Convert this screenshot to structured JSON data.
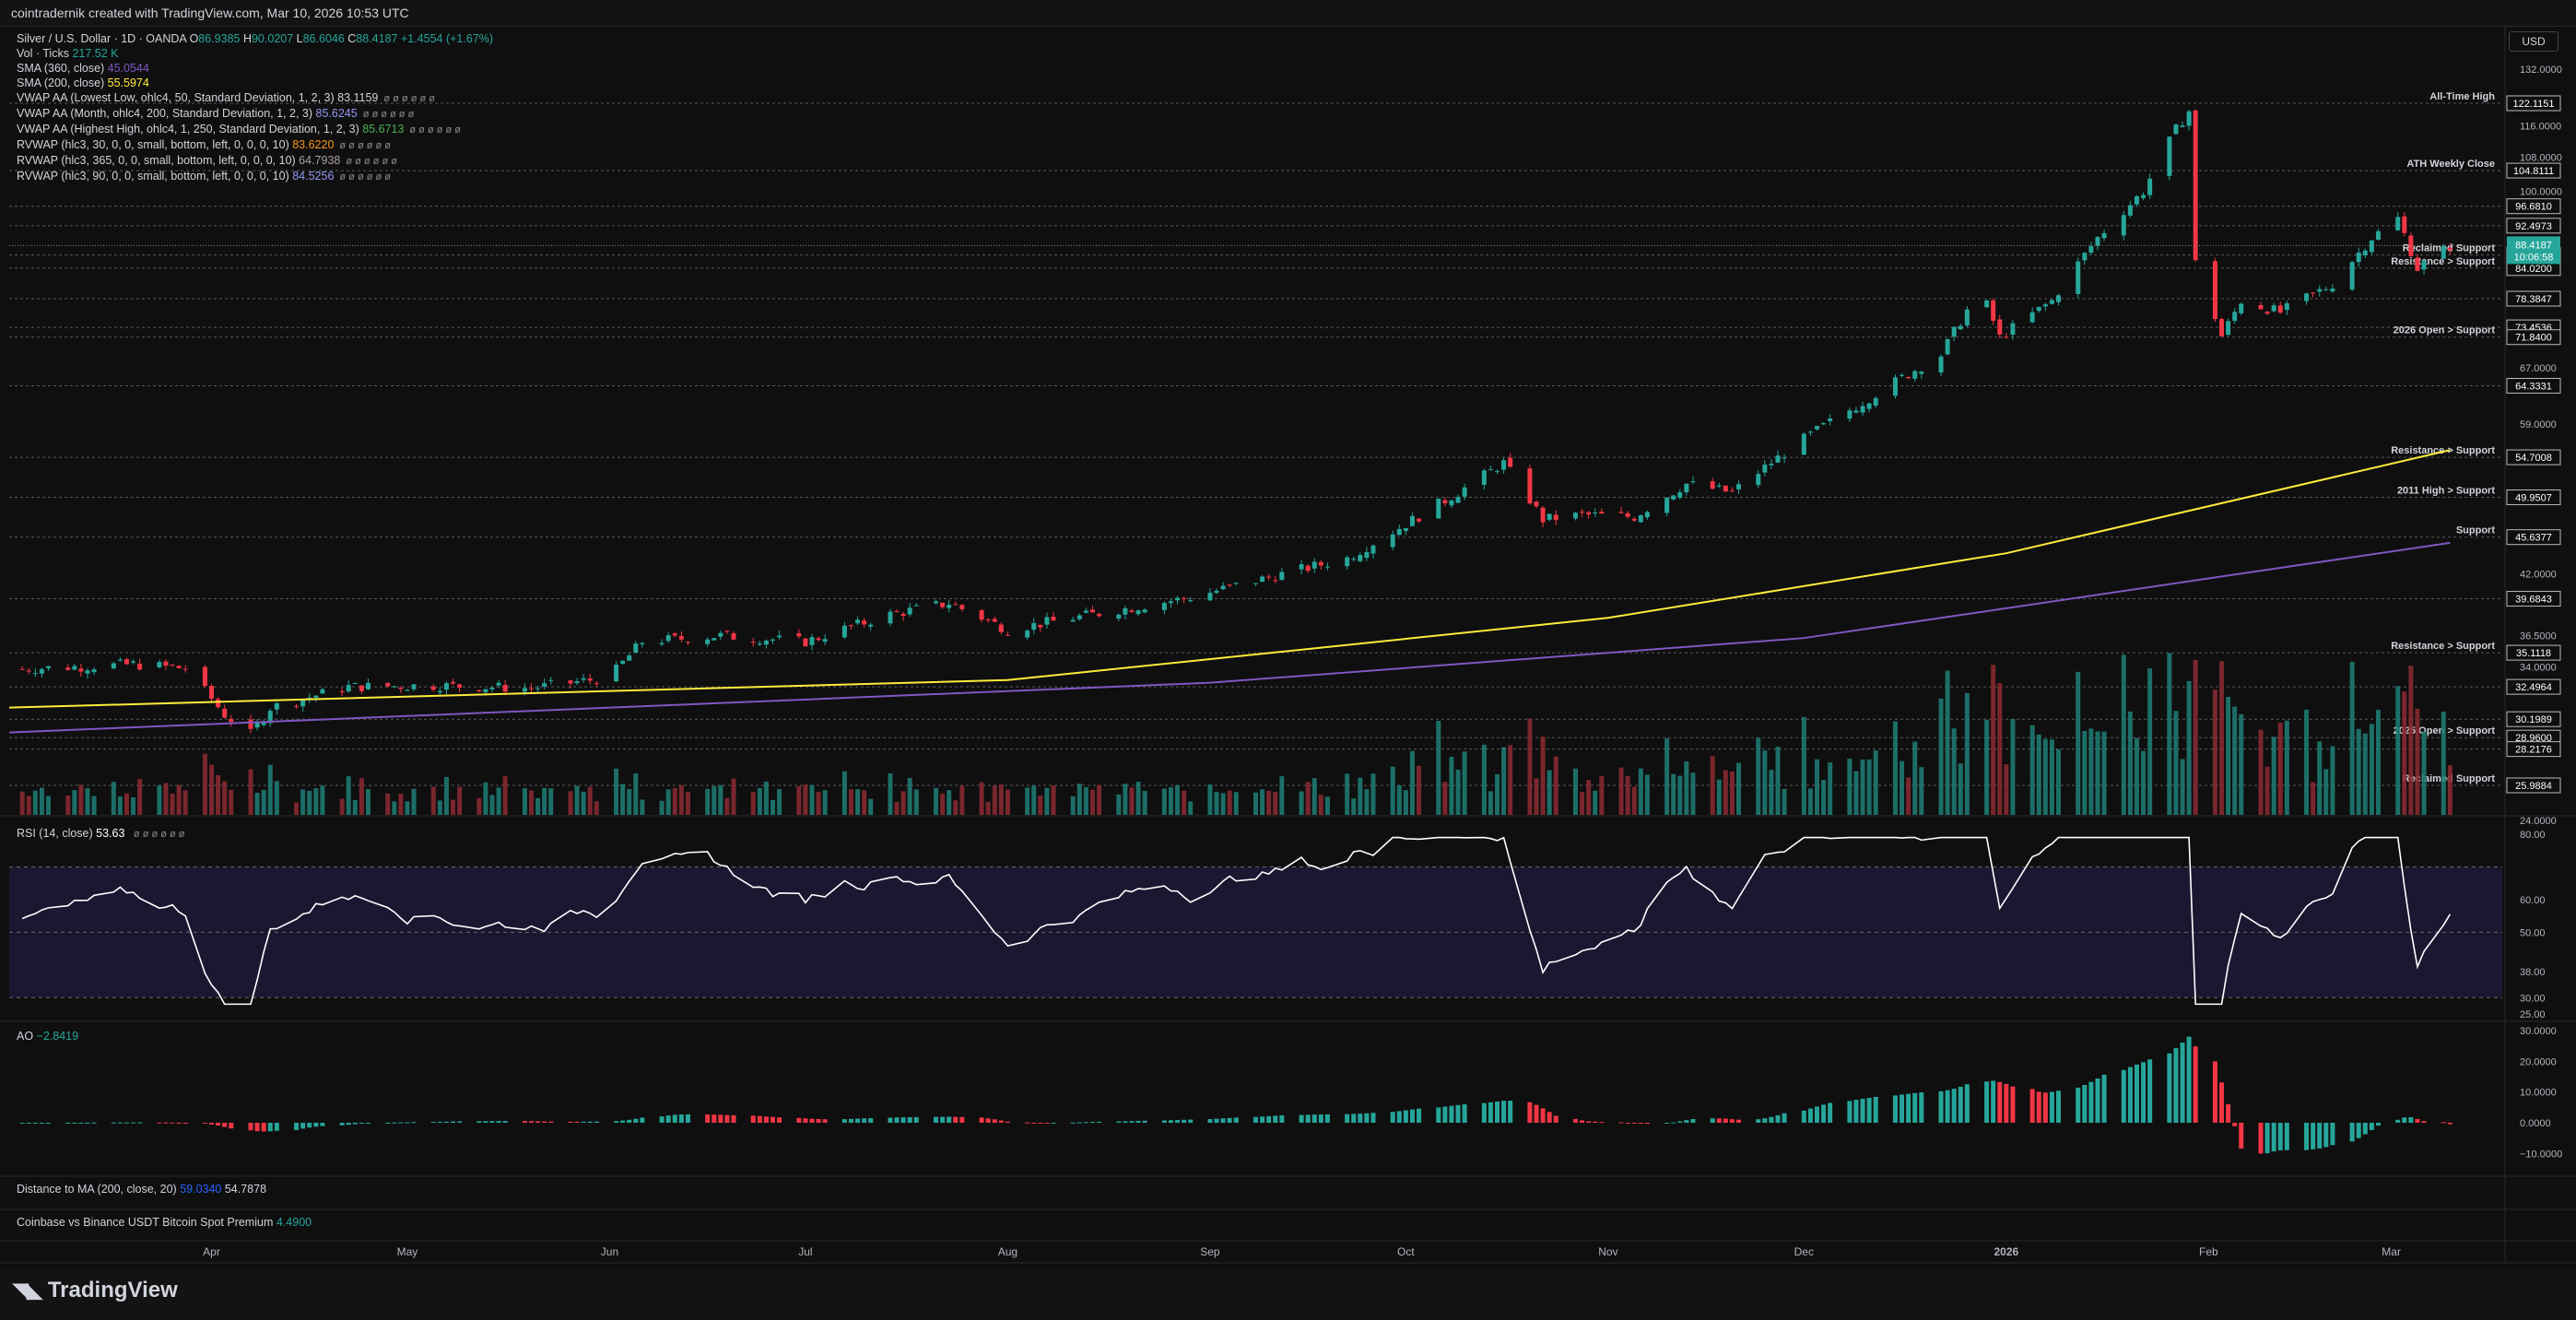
{
  "header": {
    "title": "cointradernik created with TradingView.com, Mar 10, 2026 10:53 UTC"
  },
  "currency": "USD",
  "brand": "TradingView",
  "legend": {
    "symbol": "Silver / U.S. Dollar · 1D · OANDA",
    "ohlc": [
      {
        "k": "O",
        "v": "86.9385"
      },
      {
        "k": "H",
        "v": "90.0207"
      },
      {
        "k": "L",
        "v": "86.6046"
      },
      {
        "k": "C",
        "v": "88.4187"
      }
    ],
    "change": "+1.4554 (+1.67%)",
    "indicators": [
      {
        "label": "Vol · Ticks",
        "value": "217.52 K",
        "color": "#26a69a"
      },
      {
        "label": "SMA (360, close)",
        "value": "45.0544",
        "color": "#7e57c2"
      },
      {
        "label": "SMA (200, close)",
        "value": "55.5974",
        "color": "#ffeb3b"
      },
      {
        "label": "VWAP AA (Lowest Low, ohlc4, 50, Standard Deviation, 1, 2, 3)",
        "value": "83.1159",
        "color": "#d1d4dc"
      },
      {
        "label": "VWAP AA (Month, ohlc4, 200, Standard Deviation, 1, 2, 3)",
        "value": "85.6245",
        "color": "#9598f5"
      },
      {
        "label": "VWAP AA (Highest High, ohlc4, 1, 250, Standard Deviation, 1, 2, 3)",
        "value": "85.6713",
        "color": "#4caf50"
      },
      {
        "label": "RVWAP (hlc3, 30, 0, 0, small, bottom, left, 0, 0, 0, 10)",
        "value": "83.6220",
        "color": "#f7931a"
      },
      {
        "label": "RVWAP (hlc3, 365, 0, 0, small, bottom, left, 0, 0, 0, 10)",
        "value": "64.7938",
        "color": "#b0a0a0"
      },
      {
        "label": "RVWAP (hlc3, 90, 0, 0, small, bottom, left, 0, 0, 0, 10)",
        "value": "84.5256",
        "color": "#9598f5"
      }
    ],
    "eyes": "ø ø ø ø ø ø"
  },
  "panes": {
    "rsi_label": "RSI (14, close)",
    "rsi_value": "53.63",
    "ao_label": "AO",
    "ao_value": "−2.8419",
    "dist_label": "Distance to MA (200, close, 20)",
    "dist_v1": "59.0340",
    "dist_v2": "54.7878",
    "cb_label": "Coinbase vs Binance USDT Bitcoin Spot Premium",
    "cb_value": "4.4900"
  },
  "colors": {
    "up": "#26a69a",
    "down": "#f23645",
    "bg": "#0f0f0f"
  },
  "chart_data": {
    "type": "candlestick",
    "price_axis_ticks": [
      "132.0000",
      "116.0000",
      "108.0000",
      "100.0000",
      "67.0000",
      "59.0000",
      "42.0000",
      "36.5000",
      "34.0000",
      "24.0000"
    ],
    "price_levels": [
      {
        "value": 122.1151,
        "label": "All-Time High"
      },
      {
        "value": 104.8111,
        "label": "ATH Weekly Close"
      },
      {
        "value": 96.681,
        "label": ""
      },
      {
        "value": 92.4973,
        "label": ""
      },
      {
        "value": 86.559,
        "label": "Reclaimed Support"
      },
      {
        "value": 84.02,
        "label": "Resistance > Support"
      },
      {
        "value": 78.3847,
        "label": ""
      },
      {
        "value": 73.4536,
        "label": ""
      },
      {
        "value": 71.84,
        "label": "2026 Open > Support"
      },
      {
        "value": 64.3331,
        "label": ""
      },
      {
        "value": 54.7008,
        "label": "Resistance > Support"
      },
      {
        "value": 49.9507,
        "label": "2011 High > Support"
      },
      {
        "value": 45.6377,
        "label": "Support"
      },
      {
        "value": 39.6843,
        "label": ""
      },
      {
        "value": 35.1118,
        "label": "Resistance > Support"
      },
      {
        "value": 32.4964,
        "label": ""
      },
      {
        "value": 30.1989,
        "label": ""
      },
      {
        "value": 28.96,
        "label": "2025 Open > Support"
      },
      {
        "value": 28.2176,
        "label": ""
      },
      {
        "value": 25.9884,
        "label": "Reclaimed Support"
      }
    ],
    "current_price": {
      "value": "88.4187",
      "countdown": "10:06:58"
    },
    "x_labels": [
      "Apr",
      "May",
      "Jun",
      "Jul",
      "Aug",
      "Sep",
      "Oct",
      "Nov",
      "Dec",
      "2026",
      "Feb",
      "Mar"
    ],
    "x_label_dates": [
      "2025-04-01",
      "2025-05-01",
      "2025-06-01",
      "2025-07-01",
      "2025-08-01",
      "2025-09-01",
      "2025-10-01",
      "2025-11-01",
      "2025-12-01",
      "2026-01-01",
      "2026-02-01",
      "2026-03-01"
    ],
    "price_path": [
      [
        "2025-03-01",
        33.8
      ],
      [
        "2025-03-20",
        34.2
      ],
      [
        "2025-03-28",
        33.9
      ],
      [
        "2025-04-03",
        30.5
      ],
      [
        "2025-04-07",
        29.2
      ],
      [
        "2025-04-10",
        31.0
      ],
      [
        "2025-04-22",
        32.5
      ],
      [
        "2025-05-05",
        32.6
      ],
      [
        "2025-05-20",
        32.4
      ],
      [
        "2025-06-01",
        33.2
      ],
      [
        "2025-06-06",
        36.0
      ],
      [
        "2025-06-18",
        36.5
      ],
      [
        "2025-07-01",
        36.0
      ],
      [
        "2025-07-14",
        38.3
      ],
      [
        "2025-07-23",
        39.3
      ],
      [
        "2025-08-01",
        37.0
      ],
      [
        "2025-08-13",
        38.2
      ],
      [
        "2025-08-29",
        39.8
      ],
      [
        "2025-09-09",
        41.5
      ],
      [
        "2025-09-22",
        43.5
      ],
      [
        "2025-10-01",
        47.0
      ],
      [
        "2025-10-09",
        50.5
      ],
      [
        "2025-10-16",
        54.0
      ],
      [
        "2025-10-22",
        47.5
      ],
      [
        "2025-10-28",
        48.0
      ],
      [
        "2025-11-05",
        47.8
      ],
      [
        "2025-11-13",
        51.5
      ],
      [
        "2025-11-20",
        50.5
      ],
      [
        "2025-12-01",
        57.0
      ],
      [
        "2025-12-10",
        62.0
      ],
      [
        "2025-12-22",
        69.0
      ],
      [
        "2025-12-28",
        80.0
      ],
      [
        "2025-12-31",
        71.8
      ],
      [
        "2026-01-08",
        78.0
      ],
      [
        "2026-01-15",
        90.0
      ],
      [
        "2026-01-22",
        100.0
      ],
      [
        "2026-01-27",
        115.0
      ],
      [
        "2026-01-29",
        120.0
      ],
      [
        "2026-01-30",
        85.0
      ],
      [
        "2026-02-03",
        72.0
      ],
      [
        "2026-02-06",
        78.0
      ],
      [
        "2026-02-12",
        76.0
      ],
      [
        "2026-02-20",
        81.0
      ],
      [
        "2026-02-26",
        90.0
      ],
      [
        "2026-03-02",
        94.0
      ],
      [
        "2026-03-05",
        84.0
      ],
      [
        "2026-03-10",
        88.4
      ]
    ],
    "sma200_path": [
      [
        "2025-03-01",
        31.0
      ],
      [
        "2025-08-01",
        33.0
      ],
      [
        "2025-11-01",
        38.0
      ],
      [
        "2026-01-01",
        44.0
      ],
      [
        "2026-03-10",
        55.6
      ]
    ],
    "sma360_path": [
      [
        "2025-03-01",
        29.3
      ],
      [
        "2025-09-01",
        32.8
      ],
      [
        "2025-12-01",
        36.3
      ],
      [
        "2026-03-10",
        45.05
      ]
    ],
    "rsi": {
      "range": [
        25,
        80
      ],
      "levels": [
        70,
        50,
        30
      ],
      "ticks": [
        "80.00",
        "60.00",
        "50.00",
        "38.00",
        "30.00",
        "25.00"
      ],
      "current": 53.63
    },
    "ao": {
      "ticks": [
        "30.0000",
        "20.0000",
        "10.0000",
        "0.0000",
        "−10.0000"
      ],
      "current": -2.8419
    }
  }
}
